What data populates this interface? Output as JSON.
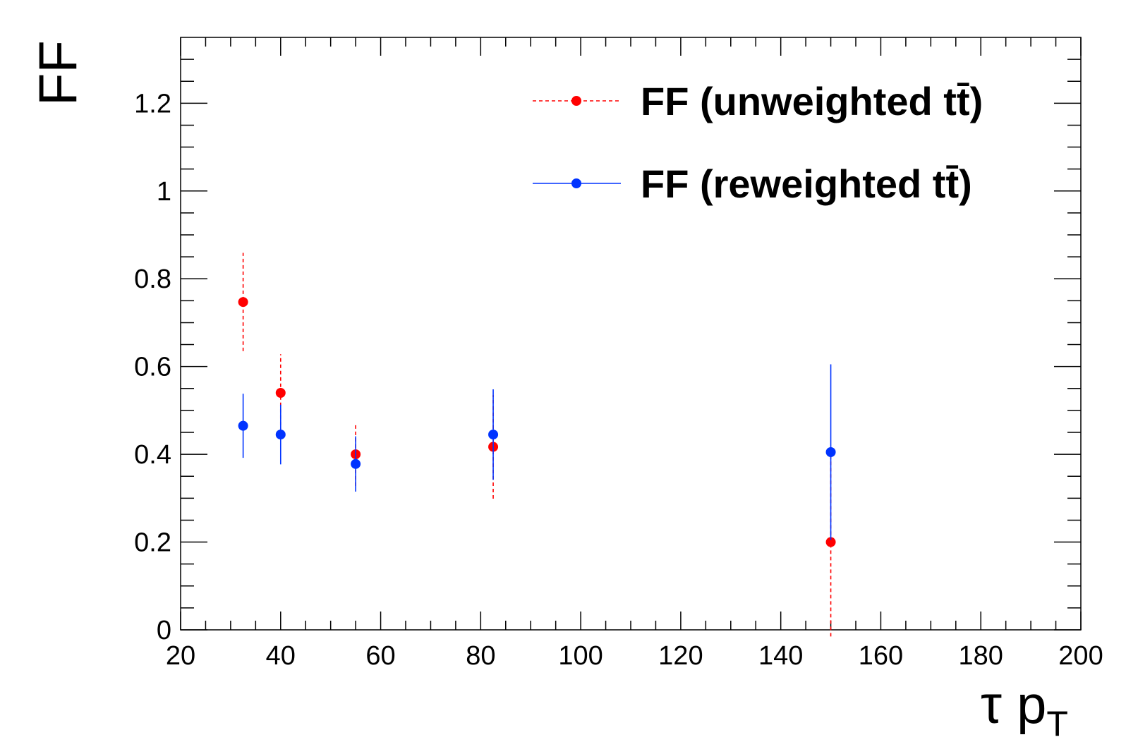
{
  "chart_data": {
    "type": "scatter",
    "xlabel": "τ p",
    "xlabel_sub": "T",
    "ylabel": "FF",
    "xlim": [
      20,
      200
    ],
    "ylim": [
      0,
      1.35
    ],
    "x_ticks": [
      "20",
      "40",
      "60",
      "80",
      "100",
      "120",
      "140",
      "160",
      "180",
      "200"
    ],
    "y_ticks": [
      "0",
      "0.2",
      "0.4",
      "0.6",
      "0.8",
      "1",
      "1.2"
    ],
    "grid": false,
    "legend_position": "top-right",
    "series": [
      {
        "name": "FF (unweighted tt̄)",
        "color": "#ff0000",
        "line_style": "dashed",
        "points": [
          {
            "x": 32.5,
            "y": 0.747,
            "err": 0.112
          },
          {
            "x": 40,
            "y": 0.54,
            "err": 0.088
          },
          {
            "x": 55,
            "y": 0.4,
            "err": 0.072
          },
          {
            "x": 82.5,
            "y": 0.417,
            "err": 0.118
          },
          {
            "x": 150,
            "y": 0.2,
            "err": 0.215
          }
        ]
      },
      {
        "name": "FF (reweighted tt̄)",
        "color": "#0033ff",
        "line_style": "solid",
        "points": [
          {
            "x": 32.5,
            "y": 0.465,
            "err": 0.073
          },
          {
            "x": 40,
            "y": 0.445,
            "err": 0.068
          },
          {
            "x": 55,
            "y": 0.378,
            "err": 0.063
          },
          {
            "x": 82.5,
            "y": 0.445,
            "err": 0.103
          },
          {
            "x": 150,
            "y": 0.405,
            "err": 0.2
          }
        ]
      }
    ]
  }
}
